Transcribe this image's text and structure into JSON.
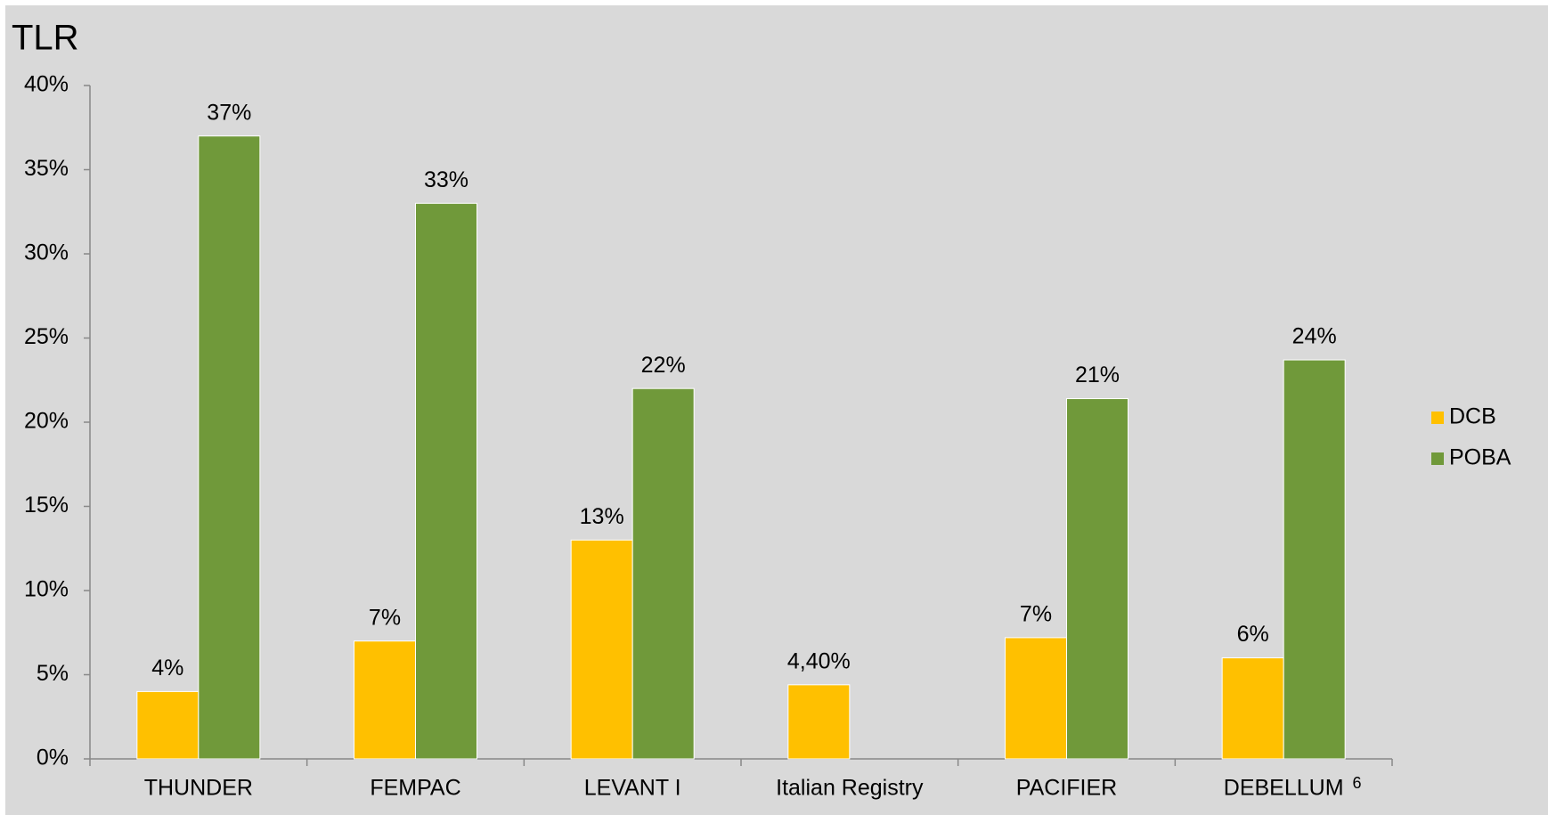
{
  "chart_data": {
    "type": "bar",
    "title": "TLR",
    "categories": [
      "THUNDER",
      "FEMPAC",
      "LEVANT I",
      "Italian Registry",
      "PACIFIER",
      "DEBELLUM"
    ],
    "footnotes": [
      null,
      null,
      null,
      null,
      null,
      "6"
    ],
    "series": [
      {
        "name": "DCB",
        "color": "#ffc000",
        "values": [
          4,
          7,
          13,
          4.4,
          7.2,
          6
        ],
        "value_labels": [
          "4%",
          "7%",
          "13%",
          "4,40%",
          "7%",
          "6%"
        ]
      },
      {
        "name": "POBA",
        "color": "#70993a",
        "values": [
          37,
          33,
          22,
          null,
          21.4,
          23.7
        ],
        "value_labels": [
          "37%",
          "33%",
          "22%",
          null,
          "21%",
          "24%"
        ]
      }
    ],
    "ylim": [
      0,
      40
    ],
    "yticks": [
      {
        "value": 0,
        "label": "0%"
      },
      {
        "value": 5,
        "label": "5%"
      },
      {
        "value": 10,
        "label": "10%"
      },
      {
        "value": 15,
        "label": "15%"
      },
      {
        "value": 20,
        "label": "20%"
      },
      {
        "value": 25,
        "label": "25%"
      },
      {
        "value": 30,
        "label": "30%"
      },
      {
        "value": 35,
        "label": "35%"
      },
      {
        "value": 40,
        "label": "40%"
      }
    ],
    "grid": false,
    "legend": "right"
  }
}
